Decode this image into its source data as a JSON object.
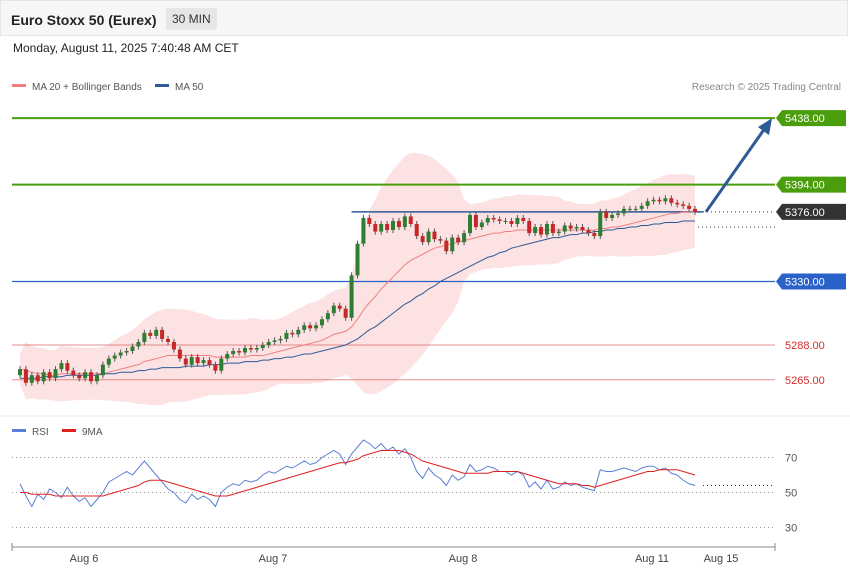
{
  "header": {
    "title": "Euro Stoxx 50 (Eurex)",
    "interval": "30 MIN"
  },
  "datetime": "Monday, August 11, 2025 7:40:48 AM CET",
  "legend_main": [
    {
      "label": "MA 20 + Bollinger Bands",
      "color": "#f08080"
    },
    {
      "label": "MA 50",
      "color": "#2e5a96"
    }
  ],
  "legend_rsi": [
    {
      "label": "RSI",
      "color": "#5b7fd6"
    },
    {
      "label": "9MA",
      "color": "#e02020"
    }
  ],
  "copyright": "Research © 2025 Trading Central",
  "colors": {
    "resistance": "#4a9e0c",
    "support": "#2a62c9",
    "pivot": "#e07070",
    "last": "#333333",
    "bull": "#2e7d32",
    "bear": "#c62828",
    "forecast": "#2e5a96"
  },
  "chart_data": {
    "type": "candlestick",
    "price_ylim": [
      5245,
      5450
    ],
    "x_ticks": [
      "Aug 6",
      "Aug 7",
      "Aug 8",
      "Aug 11",
      "Aug 15"
    ],
    "levels": [
      {
        "label": "5438.00",
        "value": 5438,
        "role": "resistance"
      },
      {
        "label": "5394.00",
        "value": 5394,
        "role": "resistance"
      },
      {
        "label": "5376.00",
        "value": 5376,
        "role": "last"
      },
      {
        "label": "5330.00",
        "value": 5330,
        "role": "support"
      },
      {
        "label": "5288.00",
        "value": 5288,
        "role": "pivot"
      },
      {
        "label": "5265.00",
        "value": 5265,
        "role": "pivot"
      }
    ],
    "close": [
      5272,
      5263,
      5268,
      5264,
      5270,
      5266,
      5272,
      5276,
      5271,
      5268,
      5266,
      5270,
      5264,
      5268,
      5275,
      5279,
      5281,
      5283,
      5284,
      5287,
      5290,
      5296,
      5294,
      5298,
      5292,
      5290,
      5285,
      5279,
      5275,
      5280,
      5276,
      5278,
      5275,
      5271,
      5279,
      5282,
      5284,
      5283,
      5286,
      5285,
      5286,
      5288,
      5290,
      5291,
      5292,
      5296,
      5295,
      5298,
      5301,
      5299,
      5301,
      5305,
      5309,
      5314,
      5312,
      5306,
      5334,
      5355,
      5372,
      5368,
      5363,
      5368,
      5364,
      5370,
      5366,
      5373,
      5368,
      5360,
      5356,
      5363,
      5358,
      5357,
      5350,
      5359,
      5356,
      5362,
      5374,
      5366,
      5369,
      5372,
      5371,
      5370,
      5370,
      5368,
      5372,
      5370,
      5362,
      5366,
      5361,
      5368,
      5362,
      5363,
      5367,
      5365,
      5366,
      5364,
      5362,
      5360,
      5376,
      5372,
      5374,
      5375,
      5378,
      5378,
      5378,
      5380,
      5383,
      5384,
      5383,
      5385,
      5382,
      5381,
      5380,
      5378,
      5376
    ],
    "open": [
      5268,
      5272,
      5263,
      5268,
      5264,
      5270,
      5266,
      5272,
      5276,
      5271,
      5268,
      5266,
      5270,
      5264,
      5268,
      5275,
      5279,
      5281,
      5283,
      5284,
      5287,
      5290,
      5296,
      5294,
      5298,
      5292,
      5290,
      5285,
      5279,
      5275,
      5280,
      5276,
      5278,
      5275,
      5271,
      5279,
      5282,
      5284,
      5283,
      5286,
      5285,
      5286,
      5288,
      5290,
      5291,
      5292,
      5296,
      5295,
      5298,
      5301,
      5299,
      5301,
      5305,
      5309,
      5314,
      5312,
      5306,
      5334,
      5355,
      5372,
      5368,
      5363,
      5368,
      5364,
      5370,
      5366,
      5373,
      5368,
      5360,
      5356,
      5363,
      5358,
      5357,
      5350,
      5359,
      5356,
      5362,
      5374,
      5366,
      5369,
      5372,
      5371,
      5370,
      5370,
      5368,
      5372,
      5370,
      5362,
      5366,
      5361,
      5368,
      5362,
      5363,
      5367,
      5365,
      5366,
      5364,
      5362,
      5360,
      5376,
      5372,
      5374,
      5375,
      5378,
      5378,
      5378,
      5380,
      5383,
      5384,
      5383,
      5385,
      5382,
      5381,
      5380,
      5378
    ],
    "ma20": [
      5272,
      5271,
      5270,
      5269,
      5269,
      5268,
      5268,
      5269,
      5269,
      5269,
      5269,
      5269,
      5269,
      5269,
      5269,
      5270,
      5271,
      5272,
      5273,
      5274,
      5275,
      5277,
      5278,
      5279,
      5280,
      5281,
      5281,
      5281,
      5281,
      5281,
      5281,
      5281,
      5281,
      5280,
      5280,
      5280,
      5280,
      5280,
      5280,
      5281,
      5281,
      5281,
      5282,
      5283,
      5284,
      5285,
      5286,
      5287,
      5288,
      5289,
      5290,
      5291,
      5293,
      5295,
      5296,
      5297,
      5300,
      5305,
      5311,
      5316,
      5320,
      5325,
      5329,
      5333,
      5337,
      5341,
      5344,
      5346,
      5348,
      5350,
      5352,
      5353,
      5354,
      5355,
      5356,
      5357,
      5358,
      5359,
      5360,
      5361,
      5362,
      5362,
      5363,
      5363,
      5364,
      5364,
      5364,
      5364,
      5364,
      5364,
      5364,
      5364,
      5364,
      5364,
      5364,
      5364,
      5364,
      5364,
      5365,
      5365,
      5366,
      5366,
      5367,
      5368,
      5369,
      5370,
      5371,
      5372,
      5373,
      5374,
      5375,
      5375,
      5376,
      5376,
      5376
    ],
    "ma50": [
      5266,
      5266,
      5266,
      5266,
      5267,
      5267,
      5267,
      5267,
      5268,
      5268,
      5268,
      5268,
      5268,
      5268,
      5269,
      5269,
      5269,
      5270,
      5270,
      5270,
      5271,
      5271,
      5272,
      5272,
      5273,
      5273,
      5273,
      5273,
      5274,
      5274,
      5274,
      5274,
      5275,
      5275,
      5275,
      5276,
      5276,
      5276,
      5277,
      5277,
      5277,
      5278,
      5278,
      5279,
      5279,
      5280,
      5280,
      5281,
      5282,
      5282,
      5283,
      5284,
      5285,
      5286,
      5287,
      5288,
      5290,
      5292,
      5295,
      5298,
      5300,
      5303,
      5306,
      5309,
      5312,
      5315,
      5317,
      5320,
      5322,
      5325,
      5327,
      5330,
      5332,
      5334,
      5336,
      5338,
      5340,
      5342,
      5344,
      5346,
      5347,
      5349,
      5350,
      5352,
      5353,
      5354,
      5355,
      5356,
      5357,
      5358,
      5359,
      5359,
      5360,
      5361,
      5361,
      5362,
      5362,
      5363,
      5363,
      5364,
      5364,
      5365,
      5365,
      5366,
      5366,
      5367,
      5367,
      5368,
      5368,
      5369,
      5369,
      5369,
      5370,
      5370,
      5370
    ],
    "rsi_ylim": [
      20,
      80
    ],
    "rsi_ticks": [
      70,
      50,
      30
    ],
    "rsi": [
      55,
      48,
      42,
      49,
      46,
      52,
      50,
      47,
      53,
      48,
      45,
      47,
      42,
      46,
      50,
      56,
      58,
      60,
      62,
      60,
      64,
      68,
      64,
      60,
      56,
      52,
      50,
      46,
      44,
      49,
      46,
      48,
      46,
      42,
      50,
      53,
      55,
      54,
      57,
      56,
      57,
      60,
      62,
      61,
      63,
      65,
      64,
      66,
      68,
      66,
      67,
      70,
      72,
      74,
      72,
      66,
      72,
      76,
      80,
      78,
      75,
      78,
      74,
      76,
      72,
      75,
      70,
      62,
      58,
      64,
      60,
      58,
      54,
      60,
      57,
      59,
      66,
      62,
      63,
      65,
      64,
      62,
      62,
      60,
      62,
      60,
      53,
      56,
      52,
      57,
      52,
      53,
      56,
      54,
      55,
      53,
      52,
      51,
      63,
      62,
      62,
      63,
      64,
      63,
      62,
      64,
      65,
      65,
      63,
      64,
      61,
      60,
      57,
      55,
      54
    ],
    "rsi_ma": [
      50,
      50,
      49,
      49,
      49,
      49,
      48,
      48,
      48,
      48,
      48,
      48,
      48,
      48,
      48,
      49,
      50,
      51,
      52,
      53,
      54,
      56,
      57,
      57,
      57,
      56,
      55,
      54,
      53,
      52,
      51,
      50,
      49,
      48,
      48,
      48,
      49,
      50,
      51,
      52,
      53,
      54,
      55,
      56,
      57,
      58,
      59,
      60,
      61,
      62,
      63,
      64,
      65,
      66,
      67,
      67,
      68,
      69,
      71,
      72,
      73,
      74,
      74,
      74,
      74,
      73,
      72,
      70,
      68,
      67,
      66,
      65,
      64,
      63,
      62,
      61,
      61,
      61,
      61,
      61,
      62,
      62,
      62,
      62,
      62,
      61,
      60,
      59,
      58,
      57,
      56,
      55,
      55,
      55,
      55,
      54,
      54,
      53,
      54,
      55,
      56,
      57,
      58,
      59,
      60,
      61,
      62,
      62,
      63,
      63,
      63,
      63,
      62,
      61,
      60
    ],
    "rsi_last": 54
  }
}
